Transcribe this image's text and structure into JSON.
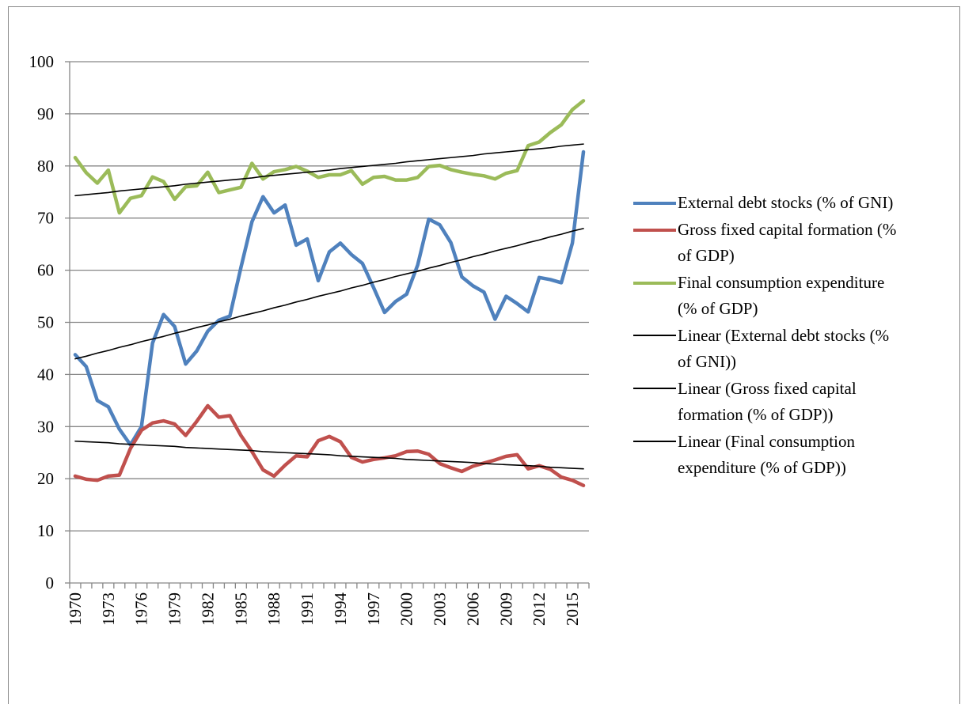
{
  "chart_data": {
    "type": "line",
    "categories": [
      "1970",
      null,
      null,
      "1973",
      null,
      null,
      "1976",
      null,
      null,
      "1979",
      null,
      null,
      "1982",
      null,
      null,
      "1985",
      null,
      null,
      "1988",
      null,
      null,
      "1991",
      null,
      null,
      "1994",
      null,
      null,
      "1997",
      null,
      null,
      "2000",
      null,
      null,
      "2003",
      null,
      null,
      "2006",
      null,
      null,
      "2009",
      null,
      null,
      "2012",
      null,
      null,
      "2015",
      null
    ],
    "series": [
      {
        "name": "External debt stocks (% of GNI)",
        "color": "#4f81bd",
        "values": [
          43.8,
          41.5,
          35,
          33.8,
          29.5,
          26.5,
          30,
          46,
          51.5,
          49.2,
          42,
          44.5,
          48.3,
          50.4,
          51.2,
          60.5,
          69.3,
          74.1,
          71,
          72.5,
          64.8,
          66,
          58,
          63.5,
          65.2,
          63,
          61.3,
          56.7,
          51.9,
          54,
          55.4,
          61,
          69.8,
          68.7,
          65.3,
          58.7,
          57,
          55.8,
          50.6,
          55,
          53.6,
          52,
          58.6,
          58.2,
          57.6,
          65.2,
          82.7
        ]
      },
      {
        "name": "Gross fixed capital formation (% of GDP)",
        "color": "#c0504d",
        "values": [
          20.5,
          19.9,
          19.7,
          20.5,
          20.7,
          25.8,
          29.3,
          30.7,
          31.1,
          30.5,
          28.3,
          31,
          34,
          31.8,
          32.1,
          28.3,
          25.2,
          21.7,
          20.5,
          22.6,
          24.4,
          24.2,
          27.3,
          28.1,
          27.1,
          24.1,
          23.2,
          23.7,
          24,
          24.4,
          25.2,
          25.3,
          24.7,
          22.9,
          22.1,
          21.4,
          22.4,
          23,
          23.6,
          24.3,
          24.6,
          21.9,
          22.5,
          21.8,
          20.3,
          19.7,
          18.7
        ]
      },
      {
        "name": "Final consumption expenditure (% of GDP)",
        "color": "#9bbb59",
        "values": [
          81.6,
          78.7,
          76.7,
          79.2,
          71,
          73.8,
          74.3,
          77.9,
          77,
          73.6,
          76,
          76.2,
          78.8,
          74.9,
          75.4,
          75.9,
          80.5,
          77.5,
          78.9,
          79.3,
          79.9,
          79,
          77.8,
          78.3,
          78.3,
          79.1,
          76.5,
          77.8,
          78,
          77.3,
          77.3,
          77.8,
          79.9,
          80.1,
          79.3,
          78.8,
          78.4,
          78.1,
          77.5,
          78.6,
          79.1,
          83.9,
          84.6,
          86.4,
          87.9,
          90.8,
          92.5
        ]
      },
      {
        "name": "Linear (External debt stocks (% of GNI))",
        "color": "#000000",
        "values": [
          43.0,
          43.5,
          44.1,
          44.6,
          45.2,
          45.7,
          46.3,
          46.8,
          47.3,
          47.9,
          48.4,
          49.0,
          49.5,
          50.1,
          50.6,
          51.2,
          51.7,
          52.2,
          52.8,
          53.3,
          53.9,
          54.4,
          55.0,
          55.5,
          56.0,
          56.6,
          57.1,
          57.7,
          58.2,
          58.8,
          59.3,
          59.8,
          60.4,
          60.9,
          61.5,
          62.0,
          62.6,
          63.1,
          63.7,
          64.2,
          64.7,
          65.3,
          65.8,
          66.4,
          66.9,
          67.5,
          68.0
        ]
      },
      {
        "name": "Linear (Gross fixed capital formation (% of GDP))",
        "color": "#000000",
        "values": [
          27.2,
          27.1,
          27.0,
          26.9,
          26.7,
          26.6,
          26.5,
          26.4,
          26.3,
          26.2,
          26.0,
          25.9,
          25.8,
          25.7,
          25.6,
          25.5,
          25.4,
          25.2,
          25.1,
          25.0,
          24.9,
          24.8,
          24.7,
          24.6,
          24.4,
          24.3,
          24.2,
          24.1,
          24.0,
          23.9,
          23.7,
          23.6,
          23.5,
          23.4,
          23.3,
          23.2,
          23.1,
          22.9,
          22.8,
          22.7,
          22.6,
          22.5,
          22.4,
          22.2,
          22.1,
          22.0,
          21.9
        ]
      },
      {
        "name": "Linear (Final consumption expenditure (% of GDP))",
        "color": "#000000",
        "values": [
          74.3,
          74.5,
          74.7,
          74.9,
          75.2,
          75.4,
          75.6,
          75.8,
          76.0,
          76.2,
          76.5,
          76.7,
          76.9,
          77.1,
          77.3,
          77.5,
          77.7,
          78.0,
          78.2,
          78.4,
          78.6,
          78.8,
          79.0,
          79.2,
          79.5,
          79.7,
          79.9,
          80.1,
          80.3,
          80.5,
          80.8,
          81.0,
          81.2,
          81.4,
          81.6,
          81.8,
          82.0,
          82.3,
          82.5,
          82.7,
          82.9,
          83.1,
          83.3,
          83.5,
          83.8,
          84.0,
          84.2
        ]
      }
    ],
    "ylim": [
      0,
      100
    ],
    "yticks": [
      0,
      10,
      20,
      30,
      40,
      50,
      60,
      70,
      80,
      90,
      100
    ],
    "grid": true,
    "legend": "right"
  }
}
